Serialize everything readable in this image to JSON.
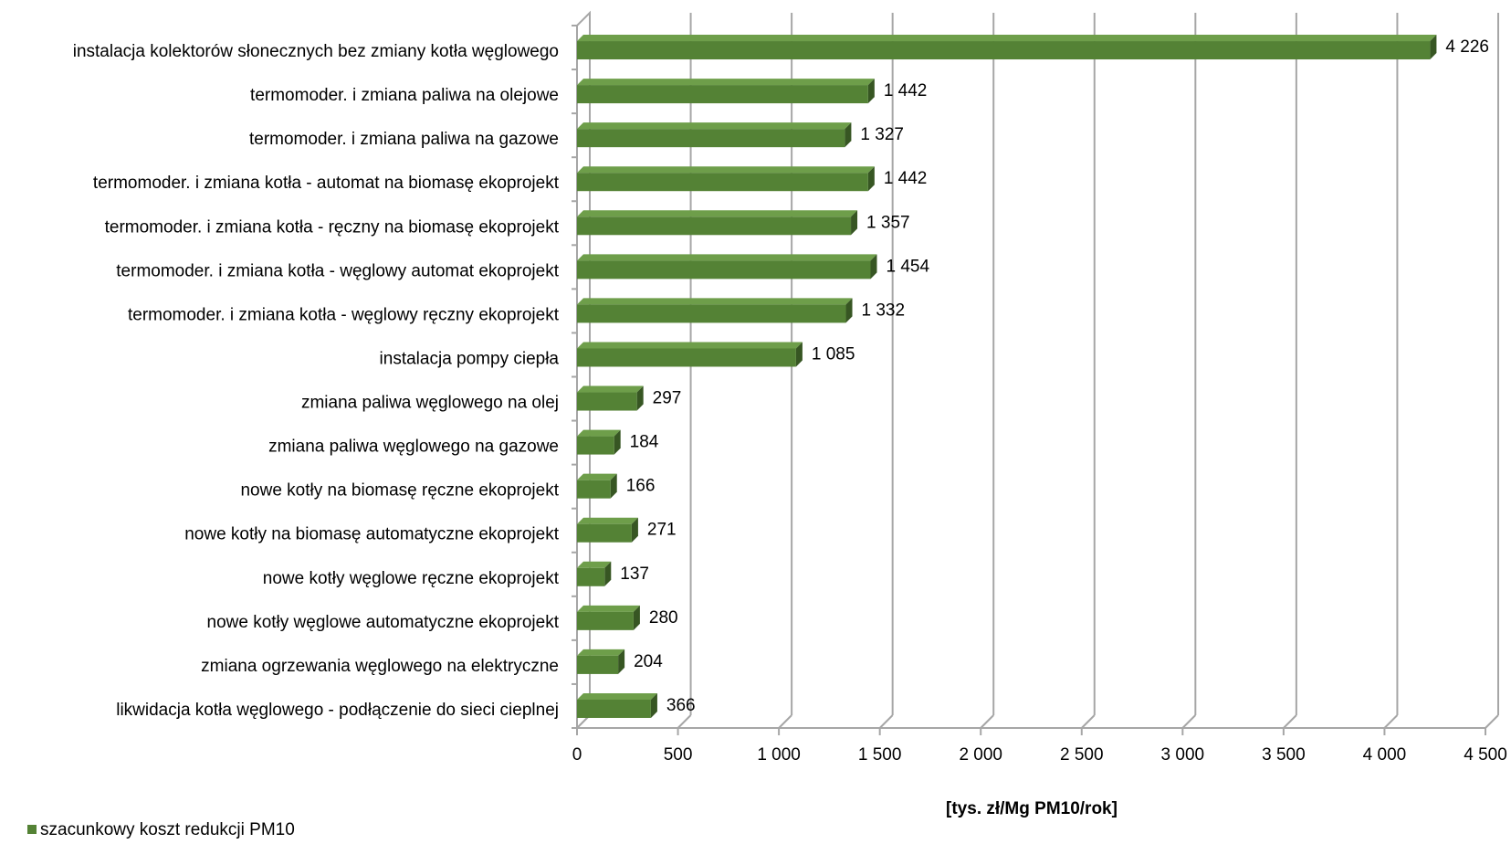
{
  "chart_data": {
    "type": "bar",
    "orientation": "horizontal",
    "style": "3d",
    "categories": [
      "instalacja kolektorów słonecznych bez zmiany kotła węglowego",
      "termomoder. i zmiana paliwa na olejowe",
      "termomoder. i zmiana paliwa na gazowe",
      "termomoder. i zmiana kotła - automat na biomasę ekoprojekt",
      "termomoder. i zmiana kotła - ręczny na biomasę ekoprojekt",
      "termomoder. i zmiana kotła - węglowy automat ekoprojekt",
      "termomoder. i zmiana kotła - węglowy ręczny ekoprojekt",
      "instalacja pompy ciepła",
      "zmiana paliwa węglowego na olej",
      "zmiana paliwa węglowego na gazowe",
      "nowe kotły na biomasę ręczne ekoprojekt",
      "nowe kotły na biomasę automatyczne ekoprojekt",
      "nowe kotły węglowe ręczne ekoprojekt",
      "nowe kotły węglowe automatyczne ekoprojekt",
      "zmiana ogrzewania węglowego na elektryczne",
      "likwidacja kotła węglowego - podłączenie do sieci cieplnej"
    ],
    "series": [
      {
        "name": "szacunkowy koszt redukcji PM10",
        "values": [
          4226,
          1442,
          1327,
          1442,
          1357,
          1454,
          1332,
          1085,
          297,
          184,
          166,
          271,
          137,
          280,
          204,
          366
        ],
        "labels": [
          "4 226",
          "1 442",
          "1 327",
          "1 442",
          "1 357",
          "1 454",
          "1 332",
          "1 085",
          "297",
          "184",
          "166",
          "271",
          "137",
          "280",
          "204",
          "366"
        ]
      }
    ],
    "xlabel": "[tys. zł/Mg PM10/rok]",
    "xlim": [
      0,
      4500
    ],
    "xticks": [
      0,
      500,
      1000,
      1500,
      2000,
      2500,
      3000,
      3500,
      4000,
      4500
    ],
    "xtick_labels": [
      "0",
      "500",
      "1 000",
      "1 500",
      "2 000",
      "2 500",
      "3 000",
      "3 500",
      "4 000",
      "4 500"
    ],
    "grid": true,
    "legend_position": "bottom-left",
    "colors": {
      "bar_front": "#548235",
      "bar_top": "#6E9E4A",
      "bar_side": "#375623",
      "grid": "#A6A6A6",
      "legend_swatch": "#548235"
    }
  }
}
